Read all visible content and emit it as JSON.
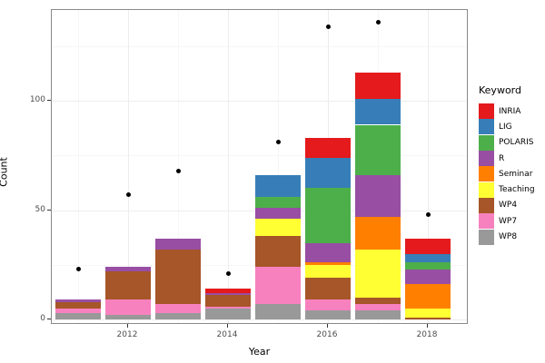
{
  "chart_data": {
    "type": "bar",
    "stacked": true,
    "xlabel": "Year",
    "ylabel": "Count",
    "legend_title": "Keyword",
    "legend_position": "right",
    "grid": true,
    "categories": [
      2011,
      2012,
      2013,
      2014,
      2015,
      2016,
      2017,
      2018
    ],
    "x_ticks": [
      "2012",
      "2014",
      "2016",
      "2018"
    ],
    "x_tick_years": [
      2012,
      2014,
      2016,
      2018
    ],
    "y_ticks": [
      0,
      50,
      100
    ],
    "y_minor_ticks": [
      25,
      75,
      125
    ],
    "ylim": [
      0,
      141
    ],
    "stack_order_bottom_to_top": [
      "WP8",
      "WP7",
      "WP4",
      "Teaching",
      "Seminar",
      "R",
      "POLARIS",
      "LIG",
      "INRIA"
    ],
    "series": [
      {
        "name": "INRIA",
        "color": "#E41A1C",
        "values": [
          0,
          0,
          0,
          2,
          0,
          9,
          12,
          7
        ]
      },
      {
        "name": "LIG",
        "color": "#377EB8",
        "values": [
          0,
          0,
          0,
          0,
          10,
          14,
          12,
          4
        ]
      },
      {
        "name": "POLARIS",
        "color": "#4DAF4A",
        "values": [
          0,
          0,
          0,
          0,
          5,
          25,
          23,
          3
        ]
      },
      {
        "name": "R",
        "color": "#984EA3",
        "values": [
          1,
          2,
          5,
          1,
          5,
          9,
          19,
          7
        ]
      },
      {
        "name": "Seminar",
        "color": "#FF7F00",
        "values": [
          0,
          0,
          0,
          0,
          0,
          1,
          15,
          11
        ]
      },
      {
        "name": "Teaching",
        "color": "#FFFF33",
        "values": [
          0,
          0,
          0,
          0,
          8,
          6,
          22,
          4
        ]
      },
      {
        "name": "WP4",
        "color": "#A65628",
        "values": [
          3,
          13,
          25,
          5,
          14,
          10,
          3,
          1
        ]
      },
      {
        "name": "WP7",
        "color": "#F781BF",
        "values": [
          2,
          7,
          4,
          1,
          17,
          5,
          3,
          0
        ]
      },
      {
        "name": "WP8",
        "color": "#999999",
        "values": [
          3,
          2,
          3,
          5,
          7,
          4,
          4,
          0
        ]
      }
    ],
    "bar_totals": [
      9,
      24,
      37,
      14,
      66,
      83,
      113,
      37
    ],
    "points_series": {
      "name": "total-dots",
      "color": "#000000",
      "values": [
        23,
        57,
        68,
        21,
        81,
        134,
        136,
        48
      ]
    },
    "colors": {
      "axis_text": "#4d4d4d",
      "panel_border": "#8a8a8a",
      "grid_major": "#ededed",
      "grid_minor": "#f6f6f6"
    }
  }
}
